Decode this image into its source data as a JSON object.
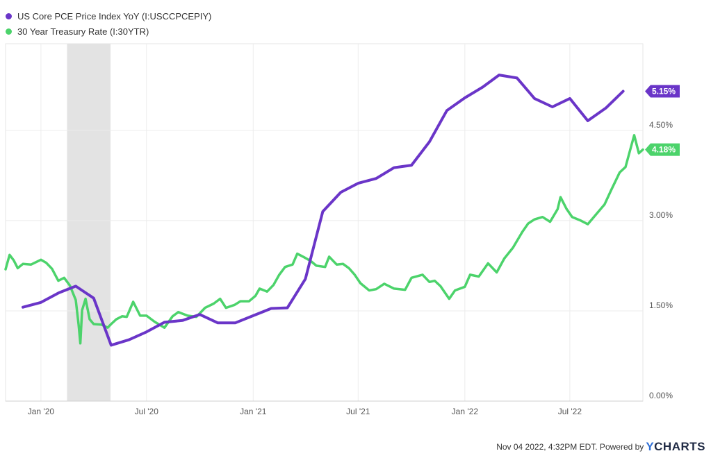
{
  "chart_data": {
    "type": "line",
    "x_range": [
      "2019-11-01",
      "2022-11-04"
    ],
    "ylim": [
      0,
      5.94
    ],
    "y_ticks": [
      "4.50%",
      "3.00%",
      "1.50%",
      "0.00%"
    ],
    "y_tick_values": [
      4.5,
      3.0,
      1.5,
      0.0
    ],
    "x_ticks": [
      "Jan '20",
      "Jul '20",
      "Jan '21",
      "Jul '21",
      "Jan '22",
      "Jul '22"
    ],
    "x_tick_dates": [
      "2020-01-01",
      "2020-07-01",
      "2021-01-01",
      "2021-07-01",
      "2022-01-01",
      "2022-07-01"
    ],
    "grid": true,
    "legend_position": "top-left",
    "recession_shading": [
      "2020-02-15",
      "2020-04-30"
    ],
    "series": [
      {
        "name": "US Core PCE Price Index YoY (I:USCCPCEPIY)",
        "color": "#6a35c8",
        "last_value_label": "5.15%",
        "points": [
          [
            "2019-12-01",
            1.56
          ],
          [
            "2020-01-01",
            1.64
          ],
          [
            "2020-02-01",
            1.8
          ],
          [
            "2020-03-01",
            1.91
          ],
          [
            "2020-04-01",
            1.71
          ],
          [
            "2020-05-01",
            0.93
          ],
          [
            "2020-06-01",
            1.02
          ],
          [
            "2020-07-01",
            1.15
          ],
          [
            "2020-08-01",
            1.31
          ],
          [
            "2020-09-01",
            1.34
          ],
          [
            "2020-10-01",
            1.44
          ],
          [
            "2020-11-01",
            1.3
          ],
          [
            "2020-12-01",
            1.3
          ],
          [
            "2021-01-01",
            1.42
          ],
          [
            "2021-02-01",
            1.54
          ],
          [
            "2021-03-01",
            1.55
          ],
          [
            "2021-04-01",
            2.03
          ],
          [
            "2021-05-01",
            3.15
          ],
          [
            "2021-06-01",
            3.47
          ],
          [
            "2021-07-01",
            3.62
          ],
          [
            "2021-08-01",
            3.7
          ],
          [
            "2021-09-01",
            3.88
          ],
          [
            "2021-10-01",
            3.92
          ],
          [
            "2021-11-01",
            4.31
          ],
          [
            "2021-12-01",
            4.83
          ],
          [
            "2022-01-01",
            5.04
          ],
          [
            "2022-02-01",
            5.22
          ],
          [
            "2022-03-01",
            5.42
          ],
          [
            "2022-04-01",
            5.37
          ],
          [
            "2022-05-01",
            5.03
          ],
          [
            "2022-06-01",
            4.89
          ],
          [
            "2022-07-01",
            5.03
          ],
          [
            "2022-08-01",
            4.66
          ],
          [
            "2022-09-01",
            4.87
          ],
          [
            "2022-10-01",
            5.15
          ]
        ]
      },
      {
        "name": "30 Year Treasury Rate (I:30YTR)",
        "color": "#4cd36b",
        "last_value_label": "4.18%",
        "points": [
          [
            "2019-11-01",
            2.19
          ],
          [
            "2019-11-08",
            2.43
          ],
          [
            "2019-11-15",
            2.34
          ],
          [
            "2019-11-22",
            2.21
          ],
          [
            "2019-12-01",
            2.28
          ],
          [
            "2019-12-15",
            2.27
          ],
          [
            "2020-01-01",
            2.35
          ],
          [
            "2020-01-10",
            2.3
          ],
          [
            "2020-01-20",
            2.2
          ],
          [
            "2020-01-31",
            2.0
          ],
          [
            "2020-02-10",
            2.05
          ],
          [
            "2020-02-20",
            1.92
          ],
          [
            "2020-03-01",
            1.68
          ],
          [
            "2020-03-06",
            1.27
          ],
          [
            "2020-03-09",
            0.96
          ],
          [
            "2020-03-12",
            1.51
          ],
          [
            "2020-03-18",
            1.7
          ],
          [
            "2020-03-25",
            1.36
          ],
          [
            "2020-04-01",
            1.28
          ],
          [
            "2020-04-15",
            1.27
          ],
          [
            "2020-04-25",
            1.22
          ],
          [
            "2020-05-01",
            1.28
          ],
          [
            "2020-05-10",
            1.36
          ],
          [
            "2020-05-20",
            1.41
          ],
          [
            "2020-05-28",
            1.4
          ],
          [
            "2020-06-08",
            1.65
          ],
          [
            "2020-06-20",
            1.42
          ],
          [
            "2020-07-01",
            1.42
          ],
          [
            "2020-07-15",
            1.32
          ],
          [
            "2020-08-01",
            1.22
          ],
          [
            "2020-08-15",
            1.41
          ],
          [
            "2020-08-25",
            1.48
          ],
          [
            "2020-09-10",
            1.42
          ],
          [
            "2020-09-25",
            1.4
          ],
          [
            "2020-10-10",
            1.55
          ],
          [
            "2020-10-25",
            1.62
          ],
          [
            "2020-11-05",
            1.7
          ],
          [
            "2020-11-15",
            1.55
          ],
          [
            "2020-11-30",
            1.6
          ],
          [
            "2020-12-10",
            1.66
          ],
          [
            "2020-12-25",
            1.66
          ],
          [
            "2021-01-05",
            1.75
          ],
          [
            "2021-01-12",
            1.87
          ],
          [
            "2021-01-25",
            1.82
          ],
          [
            "2021-02-05",
            1.93
          ],
          [
            "2021-02-15",
            2.1
          ],
          [
            "2021-02-25",
            2.23
          ],
          [
            "2021-03-10",
            2.27
          ],
          [
            "2021-03-18",
            2.45
          ],
          [
            "2021-03-30",
            2.39
          ],
          [
            "2021-04-10",
            2.33
          ],
          [
            "2021-04-20",
            2.25
          ],
          [
            "2021-05-05",
            2.23
          ],
          [
            "2021-05-12",
            2.4
          ],
          [
            "2021-05-25",
            2.27
          ],
          [
            "2021-06-05",
            2.28
          ],
          [
            "2021-06-15",
            2.21
          ],
          [
            "2021-06-25",
            2.1
          ],
          [
            "2021-07-05",
            1.96
          ],
          [
            "2021-07-20",
            1.84
          ],
          [
            "2021-08-01",
            1.86
          ],
          [
            "2021-08-15",
            1.95
          ],
          [
            "2021-09-01",
            1.87
          ],
          [
            "2021-09-20",
            1.85
          ],
          [
            "2021-10-01",
            2.05
          ],
          [
            "2021-10-20",
            2.1
          ],
          [
            "2021-11-01",
            1.98
          ],
          [
            "2021-11-10",
            2.0
          ],
          [
            "2021-11-20",
            1.91
          ],
          [
            "2021-12-05",
            1.7
          ],
          [
            "2021-12-15",
            1.84
          ],
          [
            "2022-01-01",
            1.9
          ],
          [
            "2022-01-10",
            2.1
          ],
          [
            "2022-01-25",
            2.07
          ],
          [
            "2022-02-10",
            2.29
          ],
          [
            "2022-02-25",
            2.14
          ],
          [
            "2022-03-10",
            2.37
          ],
          [
            "2022-03-25",
            2.55
          ],
          [
            "2022-04-10",
            2.81
          ],
          [
            "2022-04-20",
            2.95
          ],
          [
            "2022-05-01",
            3.02
          ],
          [
            "2022-05-15",
            3.06
          ],
          [
            "2022-05-28",
            2.98
          ],
          [
            "2022-06-10",
            3.19
          ],
          [
            "2022-06-15",
            3.39
          ],
          [
            "2022-06-25",
            3.2
          ],
          [
            "2022-07-05",
            3.06
          ],
          [
            "2022-07-20",
            3.0
          ],
          [
            "2022-08-01",
            2.94
          ],
          [
            "2022-08-15",
            3.1
          ],
          [
            "2022-08-30",
            3.27
          ],
          [
            "2022-09-10",
            3.5
          ],
          [
            "2022-09-25",
            3.8
          ],
          [
            "2022-10-05",
            3.89
          ],
          [
            "2022-10-20",
            4.42
          ],
          [
            "2022-10-28",
            4.12
          ],
          [
            "2022-11-04",
            4.18
          ]
        ]
      }
    ]
  },
  "footer": {
    "timestamp": "Nov 04 2022, 4:32PM EDT. Powered by",
    "brand_y": "Y",
    "brand_rest": "CHARTS"
  }
}
